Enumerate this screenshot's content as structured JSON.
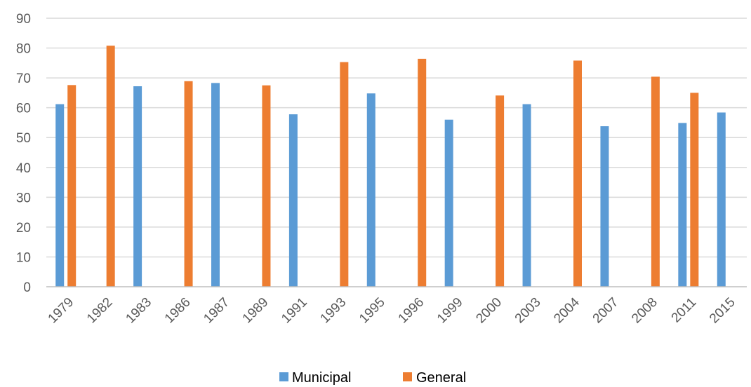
{
  "chart_data": {
    "type": "bar",
    "title": "",
    "xlabel": "",
    "ylabel": "",
    "ylim": [
      0,
      90
    ],
    "yticks": [
      0,
      10,
      20,
      30,
      40,
      50,
      60,
      70,
      80,
      90
    ],
    "grid": true,
    "legend_position": "bottom",
    "categories": [
      "1979",
      "1982",
      "1983",
      "1986",
      "1987",
      "1989",
      "1991",
      "1993",
      "1995",
      "1996",
      "1999",
      "2000",
      "2003",
      "2004",
      "2007",
      "2008",
      "2011",
      "2015"
    ],
    "series": [
      {
        "name": "Municipal",
        "color": "#5b9bd5",
        "values": [
          61.2,
          null,
          67.2,
          null,
          68.3,
          null,
          57.8,
          null,
          64.8,
          null,
          56.0,
          null,
          61.2,
          null,
          53.8,
          null,
          54.9,
          58.4
        ]
      },
      {
        "name": "General",
        "color": "#ed7d31",
        "values": [
          67.6,
          80.8,
          null,
          68.9,
          null,
          67.5,
          null,
          75.3,
          null,
          76.4,
          null,
          64.1,
          null,
          75.8,
          null,
          70.4,
          65.0,
          null
        ]
      }
    ]
  },
  "colors": {
    "grid": "#d9d9d9",
    "axis": "#bfbfbf",
    "tick_text": "#595959"
  }
}
